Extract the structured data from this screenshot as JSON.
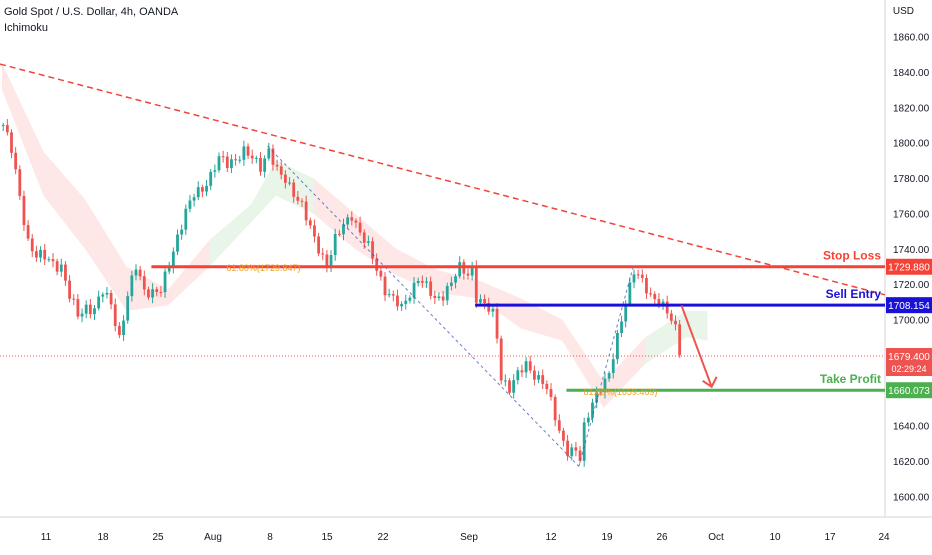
{
  "header": {
    "title": "Gold Spot / U.S. Dollar, 4h, OANDA",
    "indicator": "Ichimoku",
    "currency": "USD"
  },
  "colors": {
    "up": "#26a69a",
    "down": "#ef5350",
    "stop_loss": "#f44336",
    "sell_entry": "#1a11d6",
    "take_profit": "#4caf50",
    "trendline": "#f44336",
    "fib": "#f0a020"
  },
  "chart_data": {
    "type": "candlestick",
    "title": "Gold Spot / U.S. Dollar, 4h, OANDA",
    "ylim": [
      1590,
      1875
    ],
    "y_ticks": [
      1600,
      1620,
      1640,
      1660,
      1680,
      1700,
      1720,
      1740,
      1760,
      1780,
      1800,
      1820,
      1840,
      1860
    ],
    "x_ticks": [
      "11",
      "18",
      "25",
      "Aug",
      "8",
      "15",
      "22",
      "Sep",
      "12",
      "19",
      "26",
      "Oct",
      "10",
      "17",
      "24"
    ],
    "levels": [
      {
        "name": "Stop Loss",
        "value": 1729.88,
        "price_label": "1729.880"
      },
      {
        "name": "Sell Entry",
        "value": 1708.154,
        "price_label": "1708.154"
      },
      {
        "name": "Take Profit",
        "value": 1660.073,
        "price_label": "1660.073"
      }
    ],
    "current_price": {
      "value": 1679.4,
      "label": "1679.400",
      "countdown": "02:29:24"
    },
    "fib_labels": [
      {
        "text": "61.80%(1729.847)",
        "value": 1729.85
      },
      {
        "text": "61.80%(1659.469)",
        "value": 1659.5
      }
    ],
    "price_path": [
      [
        0,
        1810
      ],
      [
        2,
        1795
      ],
      [
        4,
        1770
      ],
      [
        6,
        1745
      ],
      [
        8,
        1735
      ],
      [
        10,
        1735
      ],
      [
        12,
        1733
      ],
      [
        14,
        1730
      ],
      [
        16,
        1712
      ],
      [
        18,
        1703
      ],
      [
        20,
        1708
      ],
      [
        22,
        1705
      ],
      [
        24,
        1715
      ],
      [
        26,
        1710
      ],
      [
        27,
        1700
      ],
      [
        28,
        1690
      ],
      [
        30,
        1712
      ],
      [
        32,
        1730
      ],
      [
        34,
        1718
      ],
      [
        36,
        1715
      ],
      [
        38,
        1715
      ],
      [
        40,
        1732
      ],
      [
        42,
        1748
      ],
      [
        44,
        1760
      ],
      [
        46,
        1770
      ],
      [
        48,
        1775
      ],
      [
        50,
        1782
      ],
      [
        52,
        1790
      ],
      [
        54,
        1788
      ],
      [
        56,
        1792
      ],
      [
        58,
        1795
      ],
      [
        60,
        1790
      ],
      [
        62,
        1787
      ],
      [
        64,
        1797
      ],
      [
        66,
        1783
      ],
      [
        68,
        1778
      ],
      [
        70,
        1773
      ],
      [
        72,
        1765
      ],
      [
        74,
        1750
      ],
      [
        76,
        1740
      ],
      [
        78,
        1732
      ],
      [
        80,
        1745
      ],
      [
        82,
        1752
      ],
      [
        84,
        1760
      ],
      [
        86,
        1750
      ],
      [
        88,
        1740
      ],
      [
        90,
        1728
      ],
      [
        92,
        1718
      ],
      [
        94,
        1712
      ],
      [
        96,
        1705
      ],
      [
        98,
        1715
      ],
      [
        100,
        1725
      ],
      [
        102,
        1718
      ],
      [
        104,
        1710
      ],
      [
        106,
        1715
      ],
      [
        108,
        1722
      ],
      [
        110,
        1728
      ],
      [
        112,
        1725
      ],
      [
        113,
        1730
      ],
      [
        114,
        1714
      ],
      [
        116,
        1708
      ],
      [
        118,
        1702
      ],
      [
        119,
        1690
      ],
      [
        120,
        1668
      ],
      [
        122,
        1662
      ],
      [
        124,
        1668
      ],
      [
        126,
        1674
      ],
      [
        128,
        1670
      ],
      [
        130,
        1665
      ],
      [
        131,
        1660
      ],
      [
        132,
        1652
      ],
      [
        134,
        1637
      ],
      [
        136,
        1627
      ],
      [
        138,
        1625
      ],
      [
        139,
        1620
      ],
      [
        140,
        1638
      ],
      [
        142,
        1655
      ],
      [
        144,
        1662
      ],
      [
        146,
        1667
      ],
      [
        148,
        1690
      ],
      [
        150,
        1712
      ],
      [
        152,
        1727
      ],
      [
        154,
        1720
      ],
      [
        156,
        1714
      ],
      [
        158,
        1712
      ],
      [
        160,
        1703
      ],
      [
        162,
        1694
      ],
      [
        163,
        1680
      ]
    ],
    "cloud": [
      [
        0,
        1845,
        1830
      ],
      [
        10,
        1795,
        1770
      ],
      [
        20,
        1768,
        1740
      ],
      [
        30,
        1730,
        1705
      ],
      [
        40,
        1717,
        1708
      ],
      [
        50,
        1745,
        1730
      ],
      [
        60,
        1765,
        1755
      ],
      [
        66,
        1790,
        1770
      ],
      [
        75,
        1780,
        1760
      ],
      [
        85,
        1760,
        1740
      ],
      [
        95,
        1740,
        1725
      ],
      [
        105,
        1728,
        1715
      ],
      [
        115,
        1722,
        1712
      ],
      [
        125,
        1712,
        1695
      ],
      [
        135,
        1700,
        1688
      ],
      [
        145,
        1665,
        1650
      ],
      [
        155,
        1690,
        1675
      ],
      [
        165,
        1705,
        1690
      ],
      [
        170,
        1705,
        1688
      ]
    ]
  }
}
